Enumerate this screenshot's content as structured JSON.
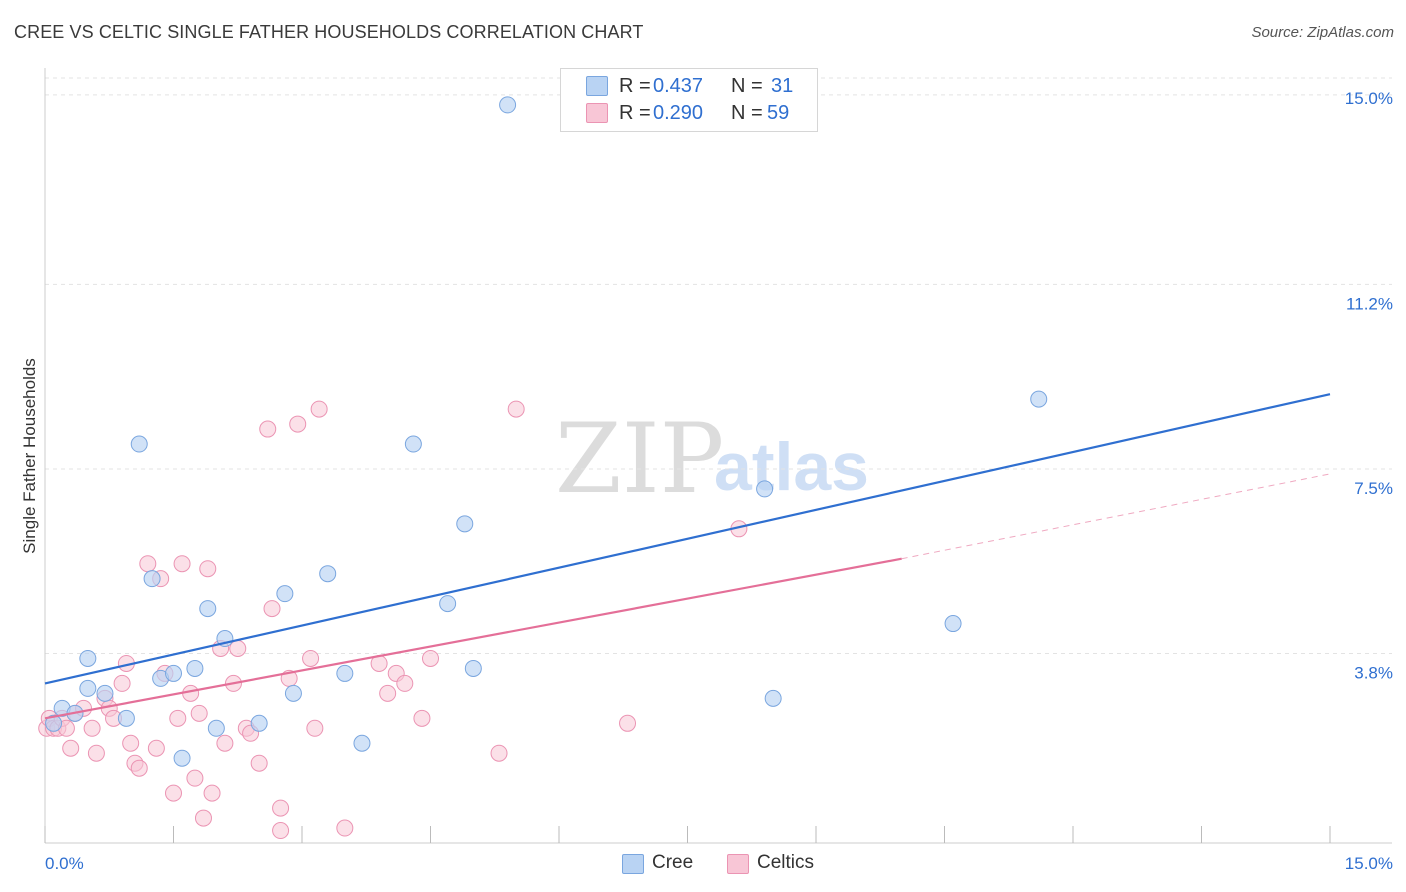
{
  "title": "CREE VS CELTIC SINGLE FATHER HOUSEHOLDS CORRELATION CHART",
  "source": "Source: ZipAtlas.com",
  "watermark": {
    "left": "ZIP",
    "right": "atlas"
  },
  "legend": {
    "rows": [
      {
        "r_label": "R =",
        "r_value": "0.437",
        "n_label": "N =",
        "n_value": "31"
      },
      {
        "r_label": "R =",
        "r_value": "0.290",
        "n_label": "N =",
        "n_value": "59"
      }
    ]
  },
  "bottom_legend": [
    "Cree",
    "Celtics"
  ],
  "colors": {
    "cree_fill": "#b9d3f3",
    "cree_stroke": "#7aa6df",
    "cree_line": "#2f6fd0",
    "celtics_fill": "#f8c6d6",
    "celtics_stroke": "#eb94b3",
    "celtics_line": "#e46f98",
    "tick_label": "#2f6fd0",
    "grid": "#e3e3e3"
  },
  "chart_data": {
    "type": "scatter",
    "title": "CREE VS CELTIC SINGLE FATHER HOUSEHOLDS CORRELATION CHART",
    "xlabel": "",
    "ylabel": "Single Father Households",
    "xlim": [
      0,
      15
    ],
    "ylim": [
      0,
      15.7
    ],
    "x_tick_labels": [
      "0.0%",
      "15.0%"
    ],
    "y_ticks": [
      3.8,
      7.5,
      11.2,
      15.0
    ],
    "y_tick_labels": [
      "3.8%",
      "7.5%",
      "11.2%",
      "15.0%"
    ],
    "series": [
      {
        "name": "Cree",
        "points": [
          [
            0.1,
            2.4
          ],
          [
            0.2,
            2.7
          ],
          [
            0.35,
            2.6
          ],
          [
            0.5,
            3.7
          ],
          [
            0.5,
            3.1
          ],
          [
            0.7,
            3.0
          ],
          [
            0.95,
            2.5
          ],
          [
            1.1,
            8.0
          ],
          [
            1.25,
            5.3
          ],
          [
            1.35,
            3.3
          ],
          [
            1.5,
            3.4
          ],
          [
            1.6,
            1.7
          ],
          [
            1.75,
            3.5
          ],
          [
            1.9,
            4.7
          ],
          [
            2.0,
            2.3
          ],
          [
            2.1,
            4.1
          ],
          [
            2.5,
            2.4
          ],
          [
            2.8,
            5.0
          ],
          [
            2.9,
            3.0
          ],
          [
            3.3,
            5.4
          ],
          [
            3.5,
            3.4
          ],
          [
            3.7,
            2.0
          ],
          [
            4.3,
            8.0
          ],
          [
            4.7,
            4.8
          ],
          [
            4.9,
            6.4
          ],
          [
            5.0,
            3.5
          ],
          [
            5.4,
            14.8
          ],
          [
            8.4,
            7.1
          ],
          [
            8.5,
            2.9
          ],
          [
            10.6,
            4.4
          ],
          [
            11.6,
            8.9
          ]
        ],
        "trend": {
          "x": [
            0.0,
            15.0
          ],
          "y": [
            3.2,
            9.0
          ]
        }
      },
      {
        "name": "Celtics",
        "points": [
          [
            0.02,
            2.3
          ],
          [
            0.05,
            2.5
          ],
          [
            0.1,
            2.3
          ],
          [
            0.15,
            2.3
          ],
          [
            0.2,
            2.5
          ],
          [
            0.25,
            2.3
          ],
          [
            0.3,
            1.9
          ],
          [
            0.35,
            2.6
          ],
          [
            0.45,
            2.7
          ],
          [
            0.55,
            2.3
          ],
          [
            0.6,
            1.8
          ],
          [
            0.7,
            2.9
          ],
          [
            0.75,
            2.7
          ],
          [
            0.8,
            2.5
          ],
          [
            0.9,
            3.2
          ],
          [
            0.95,
            3.6
          ],
          [
            1.0,
            2.0
          ],
          [
            1.05,
            1.6
          ],
          [
            1.1,
            1.5
          ],
          [
            1.2,
            5.6
          ],
          [
            1.3,
            1.9
          ],
          [
            1.35,
            5.3
          ],
          [
            1.4,
            3.4
          ],
          [
            1.5,
            1.0
          ],
          [
            1.55,
            2.5
          ],
          [
            1.6,
            5.6
          ],
          [
            1.7,
            3.0
          ],
          [
            1.75,
            1.3
          ],
          [
            1.8,
            2.6
          ],
          [
            1.9,
            5.5
          ],
          [
            1.95,
            1.0
          ],
          [
            2.05,
            3.9
          ],
          [
            2.1,
            2.0
          ],
          [
            2.2,
            3.2
          ],
          [
            2.25,
            3.9
          ],
          [
            2.35,
            2.3
          ],
          [
            2.4,
            2.2
          ],
          [
            2.5,
            1.6
          ],
          [
            2.6,
            8.3
          ],
          [
            2.65,
            4.7
          ],
          [
            2.75,
            0.7
          ],
          [
            2.85,
            3.3
          ],
          [
            2.95,
            8.4
          ],
          [
            3.1,
            3.7
          ],
          [
            3.15,
            2.3
          ],
          [
            3.2,
            8.7
          ],
          [
            3.5,
            0.3
          ],
          [
            3.9,
            3.6
          ],
          [
            4.0,
            3.0
          ],
          [
            4.1,
            3.4
          ],
          [
            4.2,
            3.2
          ],
          [
            4.4,
            2.5
          ],
          [
            4.5,
            3.7
          ],
          [
            5.3,
            1.8
          ],
          [
            5.5,
            8.7
          ],
          [
            6.8,
            2.4
          ],
          [
            8.1,
            6.3
          ],
          [
            2.75,
            0.25
          ],
          [
            1.85,
            0.5
          ]
        ],
        "trend": {
          "x": [
            0.0,
            10.0
          ],
          "y": [
            2.5,
            5.7
          ]
        },
        "trend_dashed": {
          "x": [
            10.0,
            15.0
          ],
          "y": [
            5.7,
            7.4
          ]
        }
      }
    ],
    "grid": true,
    "legend_position": "top-center"
  }
}
